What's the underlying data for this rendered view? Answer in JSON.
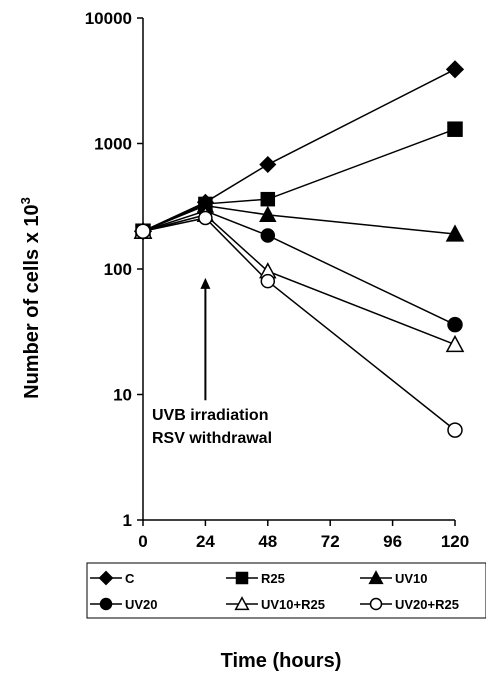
{
  "chart_data": {
    "type": "line",
    "title": "",
    "xlabel": "Time (hours)",
    "ylabel_main": "Number of cells  x 10",
    "ylabel_sup": "3",
    "yscale": "log",
    "xlim": [
      0,
      120
    ],
    "ylim": [
      1,
      10000
    ],
    "x_ticks": [
      "0",
      "24",
      "48",
      "72",
      "96",
      "120"
    ],
    "x_tick_values": [
      0,
      24,
      48,
      72,
      96,
      120
    ],
    "y_ticks": [
      "1",
      "10",
      "100",
      "1000",
      "10000"
    ],
    "y_tick_values": [
      1,
      10,
      100,
      1000,
      10000
    ],
    "grid": false,
    "legend_position": "bottom",
    "x": [
      0,
      24,
      48,
      120
    ],
    "series": [
      {
        "name": "C",
        "marker": "diamond",
        "fill": "#000000",
        "values": [
          200,
          340,
          680,
          3900
        ]
      },
      {
        "name": "R25",
        "marker": "square",
        "fill": "#000000",
        "values": [
          200,
          330,
          360,
          1300
        ]
      },
      {
        "name": "UV10",
        "marker": "triangle",
        "fill": "#000000",
        "values": [
          200,
          320,
          270,
          190
        ]
      },
      {
        "name": "UV20",
        "marker": "circle",
        "fill": "#000000",
        "values": [
          200,
          290,
          185,
          36
        ]
      },
      {
        "name": "UV10+R25",
        "marker": "triangle",
        "fill": "#ffffff",
        "values": [
          200,
          270,
          96,
          25
        ]
      },
      {
        "name": "UV20+R25",
        "marker": "circle",
        "fill": "#ffffff",
        "values": [
          200,
          255,
          80,
          5.2
        ]
      }
    ],
    "annotation": {
      "line1": "UVB irradiation",
      "line2": "RSV withdrawal",
      "arrow_x": 24,
      "arrow_y_from": 9,
      "arrow_y_to": 85
    }
  }
}
